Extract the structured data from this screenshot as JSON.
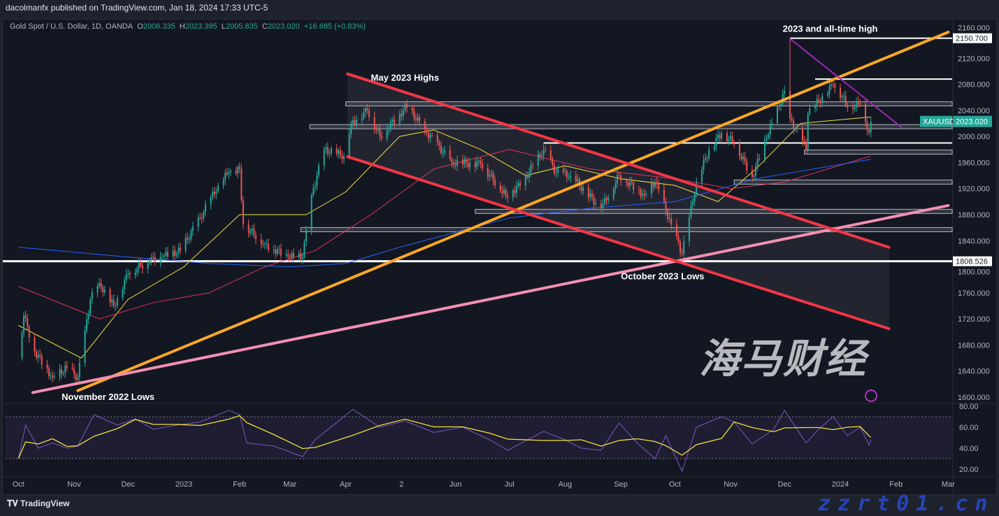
{
  "header": {
    "published": "dacolmanfx published on TradingView.com, Jan 18, 2024 17:33 UTC-5"
  },
  "legend": {
    "symbol": "Gold Spot / U.S. Dollar, 1D, OANDA",
    "o_label": "O",
    "o": "2006.335",
    "h_label": "H",
    "h": "2023.395",
    "l_label": "L",
    "l": "2005.835",
    "c_label": "C",
    "c": "2023.020",
    "change": "+16.685 (+0.83%)"
  },
  "footer": {
    "brand": "TradingView"
  },
  "watermark": {
    "cn": "海马财经",
    "url": "zzrt01.cn"
  },
  "colors": {
    "up": "#26a69a",
    "down": "#ef5350",
    "ma_yellow": "#f2e03a",
    "ma_red": "#e0345c",
    "ma_blue": "#2962ff",
    "trend_orange": "#ffa726",
    "trend_red": "#f23645",
    "trend_pink": "#f48fb1",
    "trend_purple": "#9c27b0",
    "rsi": "#7e57c2"
  },
  "chart_data": {
    "type": "candlestick",
    "ylim": [
      1600,
      2160
    ],
    "y_ticks": [
      "2160.000",
      "2120.000",
      "2080.000",
      "2040.000",
      "2000.000",
      "1960.000",
      "1920.000",
      "1880.000",
      "1840.000",
      "1800.000",
      "1760.000",
      "1720.000",
      "1680.000",
      "1640.000",
      "1600.000"
    ],
    "x_ticks": [
      {
        "label": "Oct",
        "date": "2022-10-01"
      },
      {
        "label": "Nov",
        "date": "2022-11-01"
      },
      {
        "label": "Dec",
        "date": "2022-12-01"
      },
      {
        "label": "2023",
        "date": "2023-01-01"
      },
      {
        "label": "Feb",
        "date": "2023-02-01"
      },
      {
        "label": "Mar",
        "date": "2023-03-01"
      },
      {
        "label": "Apr",
        "date": "2023-04-01"
      },
      {
        "label": "2",
        "date": "2023-05-02"
      },
      {
        "label": "Jun",
        "date": "2023-06-01"
      },
      {
        "label": "Jul",
        "date": "2023-07-01"
      },
      {
        "label": "Aug",
        "date": "2023-08-01"
      },
      {
        "label": "Sep",
        "date": "2023-09-01"
      },
      {
        "label": "Oct",
        "date": "2023-10-01"
      },
      {
        "label": "Nov",
        "date": "2023-11-01"
      },
      {
        "label": "Dec",
        "date": "2023-12-01"
      },
      {
        "label": "2024",
        "date": "2024-01-01"
      },
      {
        "label": "Feb",
        "date": "2024-02-01"
      },
      {
        "label": "Mar",
        "date": "2024-03-01"
      }
    ],
    "price_closes": [
      [
        "2022-10-01",
        1660
      ],
      [
        "2022-10-04",
        1725
      ],
      [
        "2022-10-10",
        1670
      ],
      [
        "2022-10-20",
        1630
      ],
      [
        "2022-10-28",
        1645
      ],
      [
        "2022-11-03",
        1630
      ],
      [
        "2022-11-10",
        1750
      ],
      [
        "2022-11-15",
        1775
      ],
      [
        "2022-11-23",
        1740
      ],
      [
        "2022-12-01",
        1790
      ],
      [
        "2022-12-13",
        1810
      ],
      [
        "2022-12-20",
        1815
      ],
      [
        "2022-12-30",
        1825
      ],
      [
        "2023-01-10",
        1875
      ],
      [
        "2023-01-20",
        1925
      ],
      [
        "2023-01-26",
        1945
      ],
      [
        "2023-02-01",
        1950
      ],
      [
        "2023-02-03",
        1865
      ],
      [
        "2023-02-15",
        1835
      ],
      [
        "2023-02-28",
        1815
      ],
      [
        "2023-03-08",
        1815
      ],
      [
        "2023-03-13",
        1910
      ],
      [
        "2023-03-20",
        1980
      ],
      [
        "2023-03-31",
        1970
      ],
      [
        "2023-04-04",
        2020
      ],
      [
        "2023-04-13",
        2040
      ],
      [
        "2023-04-20",
        2000
      ],
      [
        "2023-05-03",
        2040
      ],
      [
        "2023-05-04",
        2050
      ],
      [
        "2023-05-15",
        2010
      ],
      [
        "2023-05-30",
        1960
      ],
      [
        "2023-06-15",
        1958
      ],
      [
        "2023-06-29",
        1910
      ],
      [
        "2023-07-07",
        1925
      ],
      [
        "2023-07-20",
        1980
      ],
      [
        "2023-07-27",
        1945
      ],
      [
        "2023-08-04",
        1940
      ],
      [
        "2023-08-21",
        1890
      ],
      [
        "2023-08-31",
        1940
      ],
      [
        "2023-09-14",
        1910
      ],
      [
        "2023-09-20",
        1930
      ],
      [
        "2023-09-29",
        1865
      ],
      [
        "2023-10-05",
        1820
      ],
      [
        "2023-10-13",
        1930
      ],
      [
        "2023-10-20",
        1980
      ],
      [
        "2023-10-27",
        2005
      ],
      [
        "2023-11-03",
        1990
      ],
      [
        "2023-11-13",
        1938
      ],
      [
        "2023-11-21",
        1998
      ],
      [
        "2023-12-01",
        2070
      ],
      [
        "2023-12-04",
        2028
      ],
      [
        "2023-12-13",
        1980
      ],
      [
        "2023-12-14",
        2035
      ],
      [
        "2023-12-28",
        2080
      ],
      [
        "2024-01-02",
        2062
      ],
      [
        "2024-01-05",
        2045
      ],
      [
        "2024-01-12",
        2050
      ],
      [
        "2024-01-17",
        2006
      ],
      [
        "2024-01-18",
        2023
      ]
    ],
    "moving_averages": [
      {
        "color": "ma_yellow",
        "points": [
          [
            "2022-10-01",
            1710
          ],
          [
            "2022-11-05",
            1660
          ],
          [
            "2022-12-01",
            1750
          ],
          [
            "2023-01-01",
            1800
          ],
          [
            "2023-02-01",
            1880
          ],
          [
            "2023-03-10",
            1880
          ],
          [
            "2023-04-01",
            1915
          ],
          [
            "2023-05-01",
            2000
          ],
          [
            "2023-05-20",
            2010
          ],
          [
            "2023-06-15",
            1980
          ],
          [
            "2023-07-10",
            1940
          ],
          [
            "2023-08-01",
            1955
          ],
          [
            "2023-09-01",
            1935
          ],
          [
            "2023-10-01",
            1925
          ],
          [
            "2023-10-25",
            1900
          ],
          [
            "2023-11-15",
            1950
          ],
          [
            "2023-12-10",
            2020
          ],
          [
            "2024-01-18",
            2030
          ]
        ]
      },
      {
        "color": "ma_red",
        "points": [
          [
            "2022-10-01",
            1770
          ],
          [
            "2022-11-15",
            1720
          ],
          [
            "2022-12-15",
            1745
          ],
          [
            "2023-01-15",
            1760
          ],
          [
            "2023-02-15",
            1800
          ],
          [
            "2023-03-15",
            1825
          ],
          [
            "2023-04-15",
            1880
          ],
          [
            "2023-05-20",
            1950
          ],
          [
            "2023-07-01",
            1980
          ],
          [
            "2023-08-15",
            1950
          ],
          [
            "2023-10-01",
            1935
          ],
          [
            "2023-11-01",
            1920
          ],
          [
            "2023-12-01",
            1930
          ],
          [
            "2024-01-18",
            1970
          ]
        ]
      },
      {
        "color": "ma_blue",
        "points": [
          [
            "2022-10-01",
            1830
          ],
          [
            "2022-12-01",
            1815
          ],
          [
            "2023-01-15",
            1805
          ],
          [
            "2023-03-01",
            1800
          ],
          [
            "2023-04-01",
            1805
          ],
          [
            "2023-05-01",
            1830
          ],
          [
            "2023-07-01",
            1875
          ],
          [
            "2023-08-15",
            1890
          ],
          [
            "2023-10-01",
            1900
          ],
          [
            "2023-11-15",
            1935
          ],
          [
            "2024-01-18",
            1965
          ]
        ]
      }
    ],
    "trendlines": [
      {
        "color": "trend_orange",
        "from": [
          "2022-11-03",
          1610
        ],
        "to": [
          "2024-03-01",
          2160
        ]
      },
      {
        "color": "trend_pink",
        "from": [
          "2022-10-09",
          1607
        ],
        "to": [
          "2024-03-01",
          1894
        ]
      },
      {
        "color": "trend_red",
        "from": [
          "2023-04-02",
          2096
        ],
        "to": [
          "2024-01-28",
          1830
        ]
      },
      {
        "color": "trend_red",
        "from": [
          "2023-04-02",
          1969
        ],
        "to": [
          "2024-01-28",
          1705
        ]
      },
      {
        "color": "trend_purple",
        "from": [
          "2023-12-04",
          2150
        ],
        "to": [
          "2024-02-04",
          2014
        ]
      }
    ],
    "horizontal_levels": [
      {
        "price": 1808.526,
        "from": "2022-09-25",
        "style": "white",
        "label": "1808.526"
      },
      {
        "price": 2150.7,
        "from": "2023-12-04",
        "style": "white",
        "label": "2150.700"
      },
      {
        "price": 2088,
        "from": "2023-12-18",
        "style": "white"
      },
      {
        "price": 1990,
        "from": "2023-07-20",
        "style": "white"
      },
      {
        "price": 2050,
        "from": "2023-04-01",
        "style": "zone"
      },
      {
        "price": 2015,
        "from": "2023-03-12",
        "style": "zone"
      },
      {
        "price": 1976,
        "from": "2023-12-12",
        "style": "zone"
      },
      {
        "price": 1930,
        "from": "2023-11-03",
        "style": "zone"
      },
      {
        "price": 1885,
        "from": "2023-06-12",
        "style": "zone"
      },
      {
        "price": 1857,
        "from": "2023-03-07",
        "style": "zone"
      }
    ],
    "annotations": [
      {
        "text": "May 2023 Highs",
        "date": "2023-04-15",
        "price": 2090
      },
      {
        "text": "2023 and all-time high",
        "date": "2023-11-30",
        "price": 2165
      },
      {
        "text": "October 2023 Lows",
        "date": "2023-09-01",
        "price": 1785
      },
      {
        "text": "November 2022 Lows",
        "date": "2022-10-25",
        "price": 1600
      }
    ],
    "last_price": {
      "symbol": "XAUUSD",
      "value": "2023.020"
    },
    "rsi": {
      "ylim": [
        10,
        85
      ],
      "y_ticks": [
        "80.00",
        "60.00",
        "40.00",
        "20.00"
      ],
      "bands": [
        70,
        30
      ],
      "points": [
        [
          "2022-10-01",
          30
        ],
        [
          "2022-10-05",
          62
        ],
        [
          "2022-10-12",
          40
        ],
        [
          "2022-10-20",
          45
        ],
        [
          "2022-10-28",
          40
        ],
        [
          "2022-11-03",
          42
        ],
        [
          "2022-11-12",
          72
        ],
        [
          "2022-11-25",
          62
        ],
        [
          "2022-12-05",
          68
        ],
        [
          "2022-12-15",
          58
        ],
        [
          "2022-12-28",
          62
        ],
        [
          "2023-01-10",
          65
        ],
        [
          "2023-01-26",
          76
        ],
        [
          "2023-02-01",
          72
        ],
        [
          "2023-02-05",
          45
        ],
        [
          "2023-02-20",
          42
        ],
        [
          "2023-03-08",
          32
        ],
        [
          "2023-03-15",
          48
        ],
        [
          "2023-04-05",
          77
        ],
        [
          "2023-04-20",
          60
        ],
        [
          "2023-05-04",
          66
        ],
        [
          "2023-05-20",
          55
        ],
        [
          "2023-06-05",
          60
        ],
        [
          "2023-06-20",
          48
        ],
        [
          "2023-06-30",
          38
        ],
        [
          "2023-07-20",
          56
        ],
        [
          "2023-08-01",
          48
        ],
        [
          "2023-08-10",
          40
        ],
        [
          "2023-08-21",
          38
        ],
        [
          "2023-08-31",
          64
        ],
        [
          "2023-09-10",
          45
        ],
        [
          "2023-09-20",
          30
        ],
        [
          "2023-09-26",
          52
        ],
        [
          "2023-10-05",
          18
        ],
        [
          "2023-10-13",
          60
        ],
        [
          "2023-10-27",
          70
        ],
        [
          "2023-11-03",
          65
        ],
        [
          "2023-11-13",
          44
        ],
        [
          "2023-11-25",
          58
        ],
        [
          "2023-12-01",
          76
        ],
        [
          "2023-12-13",
          45
        ],
        [
          "2023-12-20",
          58
        ],
        [
          "2023-12-28",
          70
        ],
        [
          "2024-01-05",
          52
        ],
        [
          "2024-01-12",
          60
        ],
        [
          "2024-01-17",
          43
        ],
        [
          "2024-01-18",
          48
        ]
      ]
    }
  }
}
